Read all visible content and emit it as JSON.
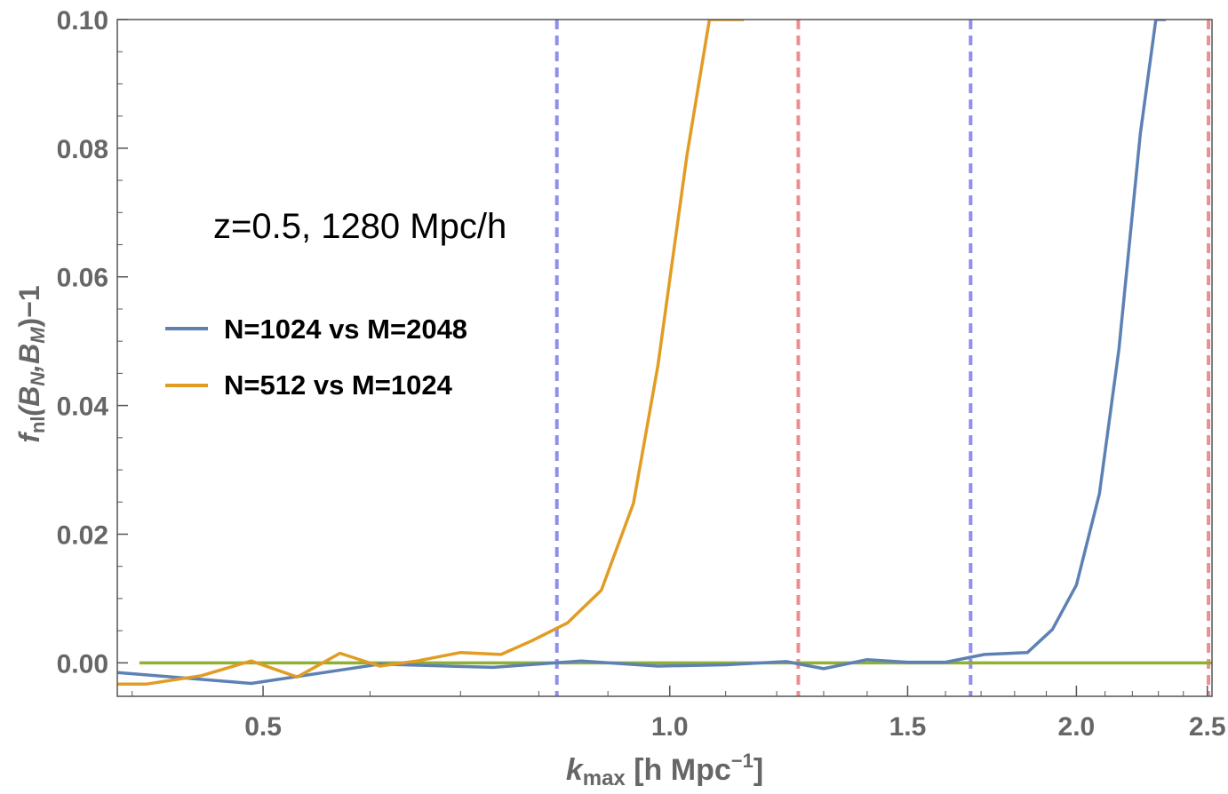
{
  "chart_data": {
    "type": "line",
    "title": "",
    "annotation": "z=0.5, 1280 Mpc/h",
    "xlabel": {
      "main": "k",
      "sub": "max",
      "rest": " [h Mpc",
      "sup": "−1",
      "end": "]"
    },
    "ylabel": {
      "f": "f",
      "nl": "nl",
      "open": "(B",
      "N": "N",
      "comma": ",B",
      "M": "M",
      "close": ")−1"
    },
    "x_scale": "log",
    "xlim": [
      0.39,
      2.52
    ],
    "ylim": [
      -0.0052,
      0.1
    ],
    "x_ticks": [
      {
        "value": 0.5,
        "label": "0.5"
      },
      {
        "value": 1.0,
        "label": "1.0"
      },
      {
        "value": 1.5,
        "label": "1.5"
      },
      {
        "value": 2.0,
        "label": "2.0"
      },
      {
        "value": 2.5,
        "label": "2.5"
      }
    ],
    "x_minor_ticks": [
      0.4,
      0.6,
      0.7,
      0.8,
      0.9,
      1.1,
      1.2,
      1.3,
      1.4,
      1.6,
      1.7,
      1.8,
      1.9,
      2.1,
      2.2,
      2.3,
      2.4
    ],
    "y_ticks": [
      {
        "value": 0.0,
        "label": "0.00"
      },
      {
        "value": 0.02,
        "label": "0.02"
      },
      {
        "value": 0.04,
        "label": "0.04"
      },
      {
        "value": 0.06,
        "label": "0.06"
      },
      {
        "value": 0.08,
        "label": "0.08"
      },
      {
        "value": 0.1,
        "label": "0.10"
      }
    ],
    "legend_position": "left",
    "series": [
      {
        "name": "N=1024 vs M=2048",
        "color": "#5e81b5",
        "x": [
          0.39,
          0.49,
          0.61,
          0.74,
          0.86,
          0.98,
          1.1,
          1.22,
          1.3,
          1.4,
          1.5,
          1.6,
          1.71,
          1.84,
          1.92,
          2.0,
          2.08,
          2.15,
          2.23,
          2.29,
          2.33
        ],
        "y": [
          -0.0015,
          -0.0032,
          -0.0002,
          -0.0007,
          0.0003,
          -0.0005,
          -0.0003,
          0.0002,
          -0.0009,
          0.0005,
          0.0001,
          0.0001,
          0.0013,
          0.0016,
          0.0052,
          0.0121,
          0.0263,
          0.0487,
          0.0822,
          0.1,
          0.1
        ]
      },
      {
        "name": "N=512 vs M=1024",
        "color": "#e19c24",
        "x": [
          0.39,
          0.41,
          0.45,
          0.49,
          0.53,
          0.57,
          0.61,
          0.65,
          0.7,
          0.75,
          0.79,
          0.84,
          0.89,
          0.94,
          0.98,
          1.03,
          1.07,
          1.1,
          1.12,
          1.135
        ],
        "y": [
          -0.0033,
          -0.0033,
          -0.002,
          0.0003,
          -0.0022,
          0.0015,
          -0.0005,
          0.0003,
          0.0016,
          0.0013,
          0.0034,
          0.0062,
          0.0113,
          0.0248,
          0.0462,
          0.079,
          0.1,
          0.1,
          0.1,
          0.1
        ]
      }
    ],
    "reference_line": {
      "y": 0.0,
      "x_from": 0.405,
      "x_to": 2.52,
      "color": "#8fb032"
    },
    "vlines": [
      {
        "x": 0.825,
        "color": "#8f8ff0"
      },
      {
        "x": 1.245,
        "color": "#eb8f8f"
      },
      {
        "x": 1.67,
        "color": "#8f8ff0"
      },
      {
        "x": 2.505,
        "color": "#eb8f8f"
      }
    ]
  }
}
